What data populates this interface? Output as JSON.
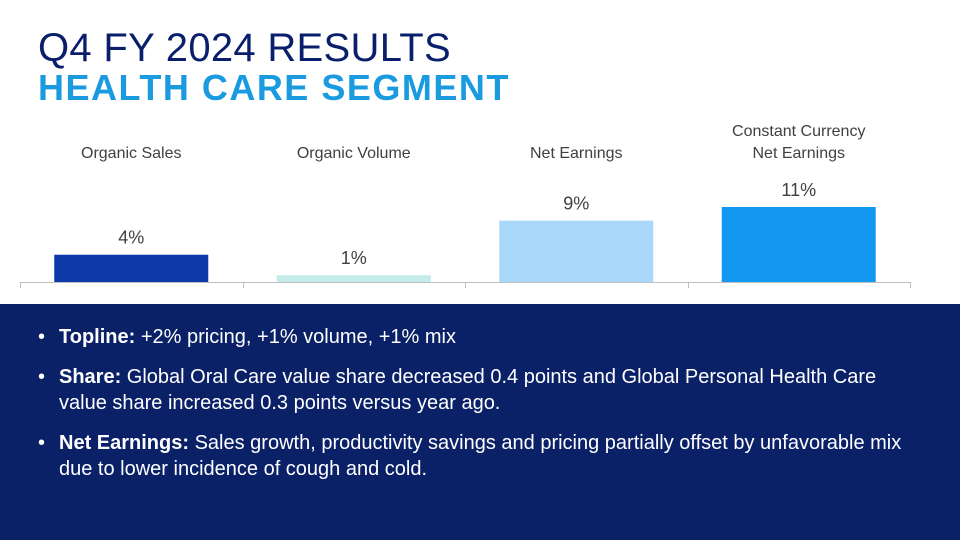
{
  "header": {
    "title": "Q4 FY 2024 RESULTS",
    "subtitle": "HEALTH CARE SEGMENT"
  },
  "colors": {
    "title": "#0a1f6b",
    "subtitle": "#1a9be0",
    "panel": "#0a2168",
    "bars": [
      "#0b3aa8",
      "#c4ecea",
      "#aad8fa",
      "#1297f0"
    ]
  },
  "chart_data": {
    "type": "bar",
    "categories": [
      [
        "Organic Sales"
      ],
      [
        "Organic Volume"
      ],
      [
        "Net Earnings"
      ],
      [
        "Constant Currency",
        "Net Earnings"
      ]
    ],
    "values": [
      4,
      1,
      9,
      11
    ],
    "data_labels": [
      "4%",
      "1%",
      "9%",
      "11%"
    ],
    "unit": "%",
    "title": "",
    "xlabel": "",
    "ylabel": "",
    "ylim": [
      0,
      11
    ],
    "grid": false,
    "legend": false
  },
  "bullets": [
    {
      "label": "Topline:",
      "text": " +2% pricing, +1% volume, +1% mix"
    },
    {
      "label": "Share:",
      "text": " Global Oral Care value share decreased 0.4 points and Global Personal Health Care value share increased 0.3 points versus year ago."
    },
    {
      "label": "Net Earnings:",
      "text": " Sales growth, productivity savings and pricing partially offset by unfavorable mix due to lower incidence of cough and cold."
    }
  ]
}
